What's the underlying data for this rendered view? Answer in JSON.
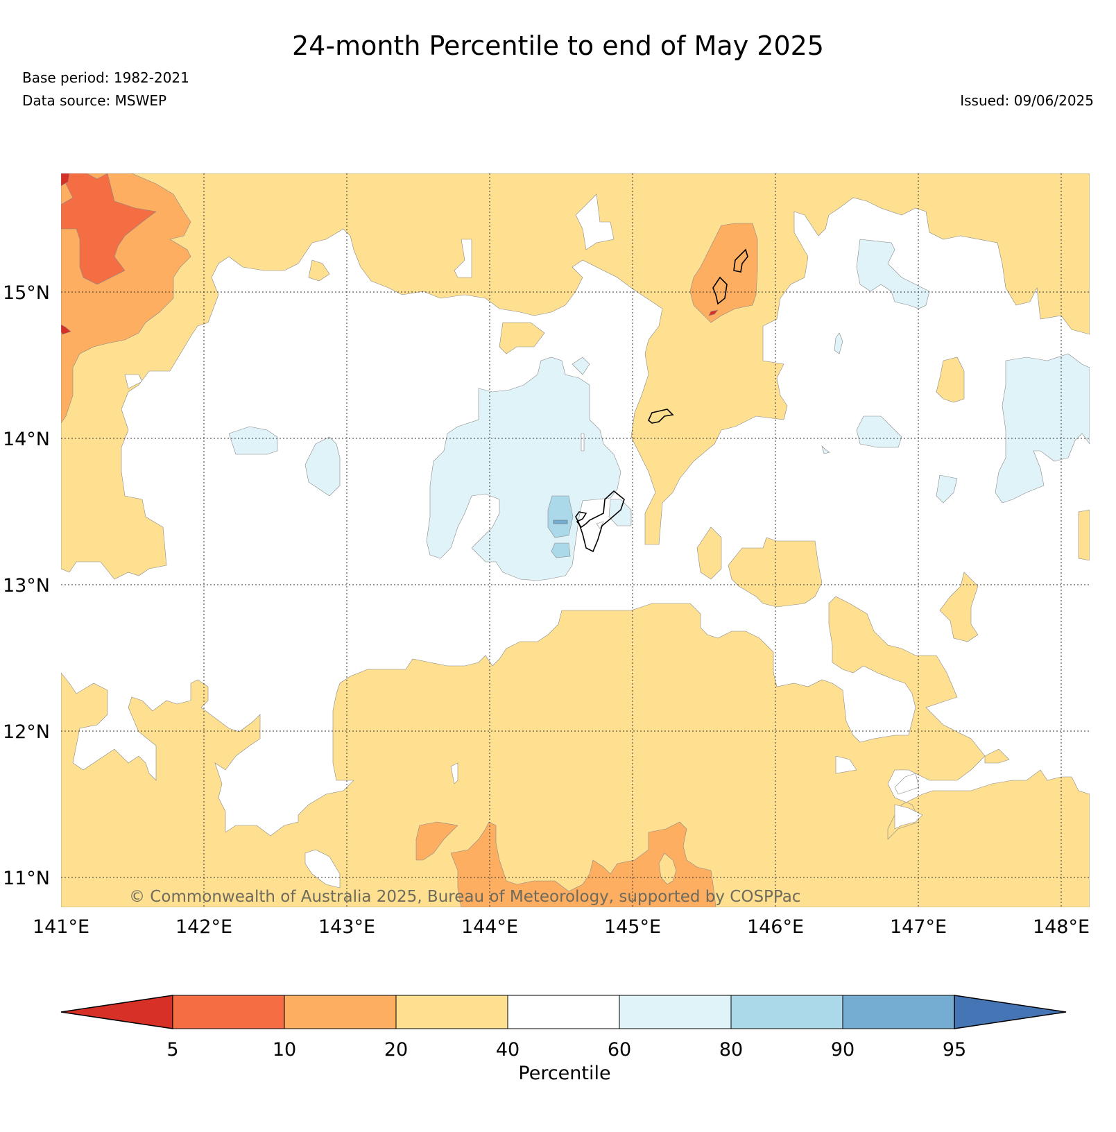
{
  "title": "24-month Percentile to end of May 2025",
  "meta": {
    "base_period": "Base period: 1982-2021",
    "data_source": "Data source: MSWEP",
    "issued": "Issued: 09/06/2025"
  },
  "map": {
    "lon_range": [
      141.0,
      148.2
    ],
    "lat_range": [
      10.8,
      15.8
    ],
    "lon_ticks": [
      {
        "value": 141,
        "label": "141°E"
      },
      {
        "value": 142,
        "label": "142°E"
      },
      {
        "value": 143,
        "label": "143°E"
      },
      {
        "value": 144,
        "label": "144°E"
      },
      {
        "value": 145,
        "label": "145°E"
      },
      {
        "value": 146,
        "label": "146°E"
      },
      {
        "value": 147,
        "label": "147°E"
      },
      {
        "value": 148,
        "label": "148°E"
      }
    ],
    "lat_ticks": [
      {
        "value": 15,
        "label": "15°N"
      },
      {
        "value": 14,
        "label": "14°N"
      },
      {
        "value": 13,
        "label": "13°N"
      },
      {
        "value": 12,
        "label": "12°N"
      },
      {
        "value": 11,
        "label": "11°N"
      }
    ],
    "gridlines": true,
    "copyright": "© Commonwealth of Australia 2025, Bureau of Meteorology, supported by COSPPac"
  },
  "colorbar": {
    "label": "Percentile",
    "bounds": [
      "5",
      "10",
      "20",
      "40",
      "60",
      "80",
      "90",
      "95"
    ],
    "colors": {
      "lt5": "#d73027",
      "p5_10": "#f46d43",
      "p10_20": "#fdae61",
      "p20_40": "#fee090",
      "p40_60": "#ffffff",
      "p60_80": "#e0f3f8",
      "p80_90": "#abd9e9",
      "p90_95": "#74add1",
      "gt95": "#4575b4"
    }
  }
}
